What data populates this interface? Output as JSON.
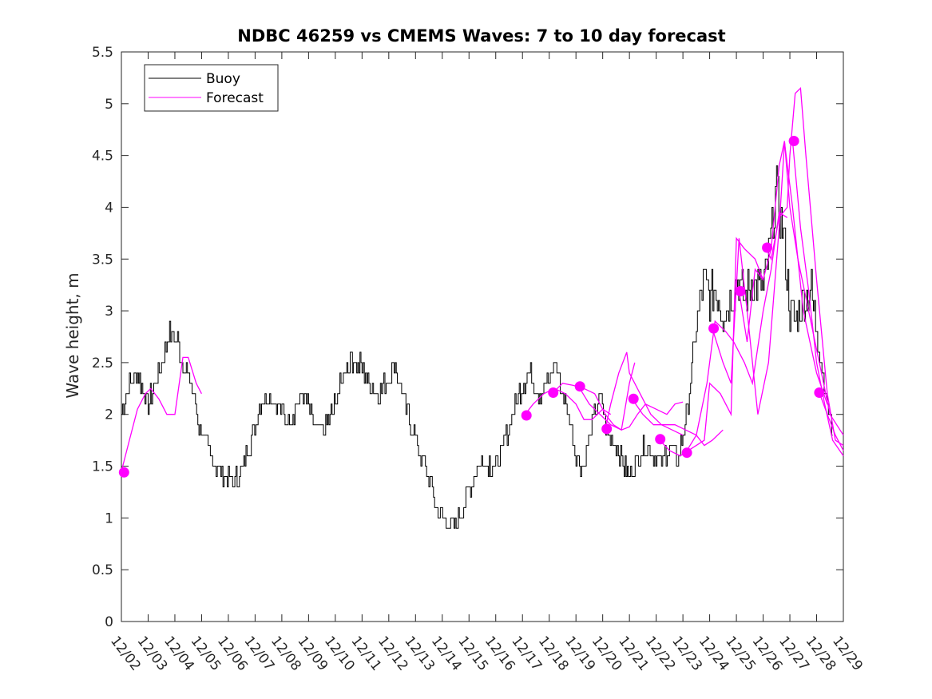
{
  "chart_data": {
    "type": "line",
    "title": "NDBC 46259 vs CMEMS Waves: 7 to 10 day forecast",
    "ylabel": "Wave height, m",
    "xlabel": "",
    "ylim": [
      0,
      5.5
    ],
    "yticks": [
      "0",
      "0.5",
      "1",
      "1.5",
      "2",
      "2.5",
      "3",
      "3.5",
      "4",
      "4.5",
      "5",
      "5.5"
    ],
    "xlim": [
      0,
      27
    ],
    "xticks": [
      "12/02",
      "12/03",
      "12/04",
      "12/05",
      "12/06",
      "12/07",
      "12/08",
      "12/09",
      "12/10",
      "12/11",
      "12/12",
      "12/13",
      "12/14",
      "12/15",
      "12/16",
      "12/17",
      "12/18",
      "12/19",
      "12/20",
      "12/21",
      "12/22",
      "12/23",
      "12/24",
      "12/25",
      "12/26",
      "12/27",
      "12/28",
      "12/29"
    ],
    "grid": false,
    "legend_location": "top-left",
    "colors": {
      "buoy": "#000000",
      "forecast": "#ff00ff"
    },
    "series": [
      {
        "name": "Buoy",
        "x": [
          0,
          0.3,
          0.6,
          1.0,
          1.5,
          1.8,
          2.1,
          2.3,
          2.6,
          2.9,
          3.2,
          3.5,
          3.8,
          4.2,
          4.5,
          4.9,
          5.2,
          5.5,
          5.8,
          6.2,
          6.5,
          6.8,
          7.0,
          7.3,
          7.6,
          8.0,
          8.3,
          8.6,
          9.0,
          9.3,
          9.6,
          9.9,
          10.2,
          10.6,
          10.9,
          11.2,
          11.5,
          11.8,
          12.1,
          12.4,
          12.8,
          13.1,
          13.3,
          13.6,
          14.0,
          14.3,
          14.6,
          15.0,
          15.3,
          15.6,
          16.0,
          16.2,
          16.5,
          16.8,
          17.0,
          17.3,
          17.6,
          17.9,
          18.2,
          18.5,
          18.8,
          19.0,
          19.3,
          19.6,
          19.9,
          20.2,
          20.5,
          20.8,
          21.2,
          21.5,
          21.8,
          22.0,
          22.2,
          22.5,
          22.8,
          23.0,
          23.3,
          23.6,
          24.0,
          24.2,
          24.5,
          24.8,
          25.0,
          25.2,
          25.5,
          25.8,
          26.0,
          26.2,
          26.4,
          26.6
        ],
        "y": [
          2.0,
          2.3,
          2.4,
          2.1,
          2.5,
          2.8,
          2.7,
          2.5,
          2.3,
          1.9,
          1.7,
          1.5,
          1.4,
          1.35,
          1.45,
          1.8,
          2.1,
          2.2,
          2.1,
          1.95,
          2.05,
          2.2,
          2.05,
          1.85,
          1.85,
          2.1,
          2.4,
          2.55,
          2.45,
          2.3,
          2.2,
          2.3,
          2.5,
          2.1,
          1.85,
          1.6,
          1.35,
          1.1,
          0.95,
          0.9,
          1.1,
          1.35,
          1.5,
          1.55,
          1.5,
          1.7,
          2.0,
          2.3,
          2.4,
          2.2,
          2.3,
          2.5,
          2.2,
          1.9,
          1.6,
          1.5,
          1.9,
          2.2,
          1.8,
          1.7,
          1.5,
          1.4,
          1.55,
          1.7,
          1.6,
          1.55,
          1.7,
          1.55,
          2.1,
          2.9,
          3.3,
          3.1,
          3.2,
          3.0,
          3.1,
          3.3,
          3.1,
          3.3,
          3.2,
          3.5,
          4.2,
          3.6,
          3.0,
          2.9,
          3.1,
          3.2,
          2.8,
          2.4,
          2.1,
          1.8
        ]
      },
      {
        "name": "Forecast",
        "segments": [
          {
            "x": [
              0,
              0.3,
              0.6,
              0.9,
              1.1,
              1.4,
              1.7,
              2.0,
              2.3,
              2.5,
              2.8,
              3.0
            ],
            "y": [
              1.45,
              1.75,
              2.05,
              2.2,
              2.25,
              2.15,
              2.0,
              2.0,
              2.55,
              2.55,
              2.3,
              2.2
            ]
          },
          {
            "x": [
              15.1,
              15.4,
              15.8,
              16.2,
              16.6,
              17.0,
              17.3,
              17.6,
              18.0,
              18.3
            ],
            "y": [
              2.0,
              2.1,
              2.2,
              2.25,
              2.2,
              2.1,
              1.95,
              1.95,
              2.05,
              2.0
            ]
          },
          {
            "x": [
              16.1,
              16.5,
              16.9,
              17.3,
              17.7,
              18.1,
              18.4,
              18.7,
              19.0,
              19.2
            ],
            "y": [
              2.2,
              2.3,
              2.28,
              2.25,
              2.2,
              2.0,
              1.9,
              1.85,
              2.3,
              2.5
            ]
          },
          {
            "x": [
              17.1,
              17.5,
              17.9,
              18.3,
              18.7,
              19.0,
              19.3,
              19.6,
              20.0,
              20.4,
              20.7,
              21.0
            ],
            "y": [
              2.27,
              2.1,
              2.0,
              1.9,
              1.85,
              1.88,
              2.0,
              2.1,
              2.05,
              2.0,
              2.1,
              2.12
            ]
          },
          {
            "x": [
              18.1,
              18.3,
              18.6,
              18.9,
              19.0,
              19.4,
              19.8,
              20.2,
              20.6,
              21.0
            ],
            "y": [
              1.86,
              2.1,
              2.4,
              2.6,
              2.4,
              2.2,
              2.0,
              1.9,
              1.85,
              1.8
            ]
          },
          {
            "x": [
              19.1,
              19.5,
              19.9,
              20.3,
              20.7,
              21.1,
              21.5,
              21.8,
              22.1,
              22.5
            ],
            "y": [
              2.15,
              2.0,
              1.9,
              1.9,
              1.9,
              1.85,
              1.8,
              1.7,
              1.75,
              1.85
            ]
          },
          {
            "x": [
              20.1,
              20.5,
              20.9,
              21.2,
              21.5,
              21.8,
              22.0,
              22.4,
              22.8,
              23.0,
              23.3,
              23.7,
              24.0
            ],
            "y": [
              1.76,
              1.65,
              1.6,
              1.65,
              1.7,
              1.75,
              2.3,
              2.2,
              2.0,
              3.7,
              3.6,
              3.5,
              3.3
            ]
          },
          {
            "x": [
              21.1,
              21.5,
              21.9,
              22.2,
              22.6,
              22.9,
              23.3,
              23.6,
              24.0,
              24.3,
              24.6,
              24.9
            ],
            "y": [
              1.63,
              1.8,
              2.3,
              2.9,
              2.8,
              2.7,
              2.5,
              2.3,
              3.0,
              3.4,
              3.95,
              3.9
            ]
          },
          {
            "x": [
              22.1,
              22.5,
              22.8,
              23.1,
              23.4,
              23.8,
              24.2,
              24.6,
              24.8,
              25.1,
              25.5,
              26.0,
              26.4
            ],
            "y": [
              2.83,
              2.5,
              2.3,
              3.7,
              3.0,
              2.0,
              2.5,
              3.8,
              4.63,
              4.0,
              3.0,
              2.4,
              2.1
            ]
          },
          {
            "x": [
              23.1,
              23.4,
              23.7,
              24.0,
              24.3,
              24.6,
              24.8,
              25.0,
              25.3,
              25.7,
              26.1,
              26.5,
              27.0
            ],
            "y": [
              3.19,
              2.7,
              3.4,
              3.3,
              3.6,
              4.4,
              4.64,
              4.0,
              3.5,
              3.0,
              2.5,
              2.0,
              1.8
            ]
          },
          {
            "x": [
              24.1,
              24.3,
              24.6,
              24.9,
              25.0,
              25.2,
              25.4,
              25.6,
              26.0,
              26.4,
              26.7,
              27.0
            ],
            "y": [
              3.61,
              3.5,
              3.9,
              4.0,
              4.5,
              5.1,
              5.15,
              4.5,
              3.3,
              2.2,
              1.75,
              1.7
            ]
          },
          {
            "x": [
              25.1,
              25.4,
              25.7,
              26.0,
              26.3,
              26.6,
              27.0
            ],
            "y": [
              4.64,
              3.8,
              3.2,
              2.5,
              2.1,
              1.75,
              1.6
            ]
          },
          {
            "x": [
              26.1,
              26.4,
              26.7,
              27.0
            ],
            "y": [
              2.21,
              2.0,
              1.8,
              1.65
            ]
          }
        ],
        "markers": {
          "x": [
            0.1,
            15.15,
            16.15,
            17.15,
            18.15,
            19.15,
            20.15,
            21.15,
            22.15,
            23.15,
            24.15,
            25.15,
            26.1
          ],
          "y": [
            1.44,
            1.99,
            2.21,
            2.27,
            1.86,
            2.15,
            1.76,
            1.63,
            2.83,
            3.19,
            3.61,
            4.64,
            2.21
          ]
        }
      }
    ]
  }
}
